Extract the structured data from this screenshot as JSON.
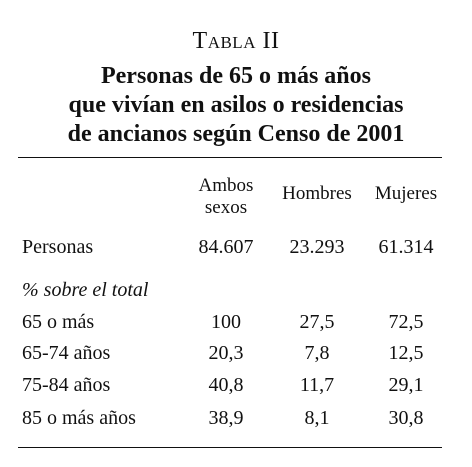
{
  "table_label": "Tabla II",
  "title_lines": [
    "Personas de 65 o más años",
    "que vivían en asilos o residencias",
    "de ancianos según Censo de 2001"
  ],
  "columns": {
    "ambos_line1": "Ambos",
    "ambos_line2": "sexos",
    "hombres": "Hombres",
    "mujeres": "Mujeres"
  },
  "personas": {
    "label": "Personas",
    "ambos": "84.607",
    "hombres": "23.293",
    "mujeres": "61.314"
  },
  "section_label": "% sobre el total",
  "rows": [
    {
      "label": "65 o más",
      "ambos": "100",
      "hombres": "27,5",
      "mujeres": "72,5"
    },
    {
      "label": "65-74 años",
      "ambos": "20,3",
      "hombres": "7,8",
      "mujeres": "12,5"
    },
    {
      "label": "75-84 años",
      "ambos": "40,8",
      "hombres": "11,7",
      "mujeres": "29,1"
    },
    {
      "label": "85 o más años",
      "ambos": "38,9",
      "hombres": "8,1",
      "mujeres": "30,8"
    }
  ]
}
